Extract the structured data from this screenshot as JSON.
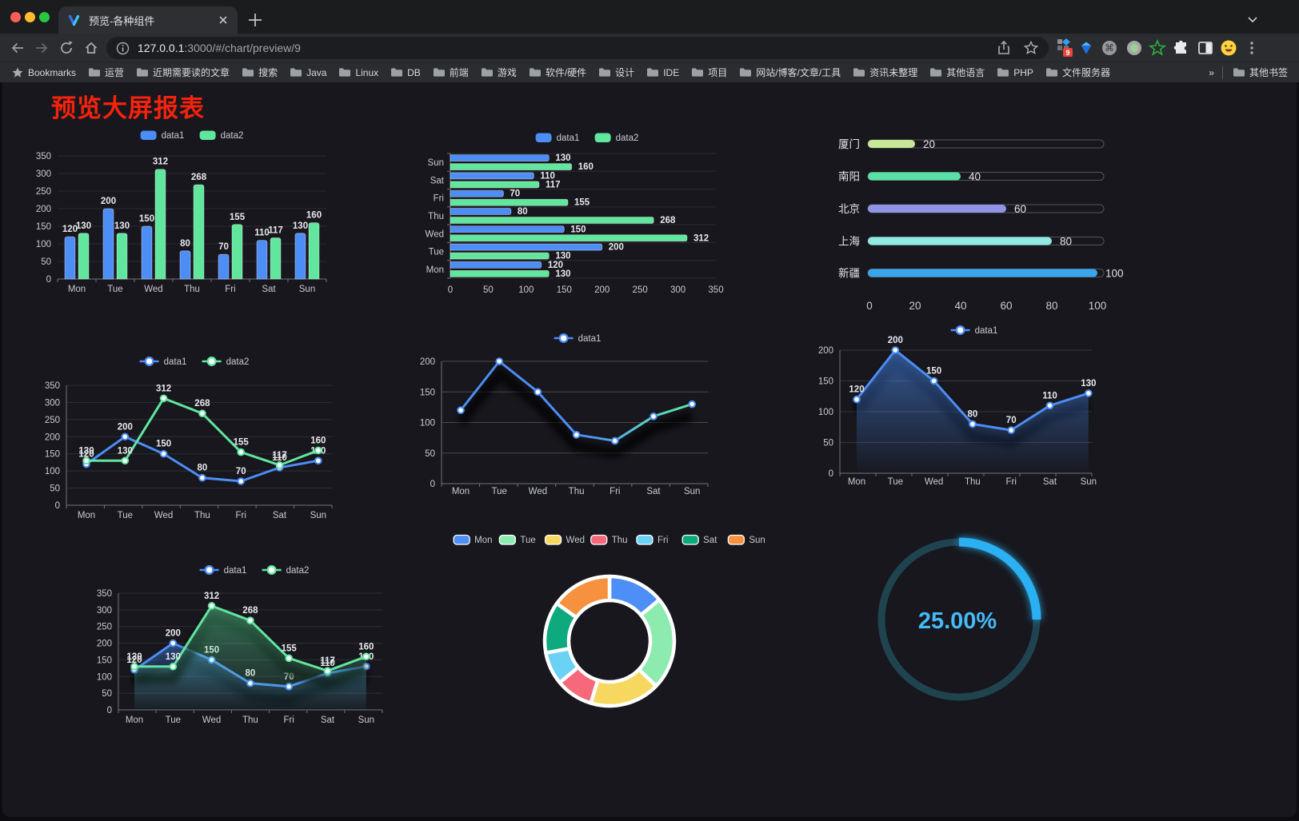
{
  "browser": {
    "tab_title": "预览-各种组件",
    "url_host": "127.0.0.1",
    "url_path": ":3000/#/chart/preview/9",
    "extension_badge": "9",
    "bookmarks_label": "Bookmarks",
    "bookmark_folders": [
      "运营",
      "近期需要读的文章",
      "搜索",
      "Java",
      "Linux",
      "DB",
      "前端",
      "游戏",
      "软件/硬件",
      "设计",
      "IDE",
      "项目",
      "网站/博客/文章/工具",
      "资讯未整理",
      "其他语言",
      "PHP",
      "文件服务器"
    ],
    "bookmarks_overflow": "»",
    "other_bookmarks": "其他书签"
  },
  "page": {
    "title": "预览大屏报表"
  },
  "chart_data": [
    {
      "id": "bar-grouped",
      "type": "bar",
      "categories": [
        "Mon",
        "Tue",
        "Wed",
        "Thu",
        "Fri",
        "Sat",
        "Sun"
      ],
      "series": [
        {
          "name": "data1",
          "color": "#4C8DF6",
          "values": [
            120,
            200,
            150,
            80,
            70,
            110,
            130
          ]
        },
        {
          "name": "data2",
          "color": "#61E69E",
          "values": [
            130,
            130,
            312,
            268,
            155,
            117,
            160
          ]
        }
      ],
      "ylim": [
        0,
        350
      ],
      "ytick_step": 50,
      "legend_position": "top",
      "grid": true
    },
    {
      "id": "bar-horizontal",
      "type": "hbar",
      "categories": [
        "Mon",
        "Tue",
        "Wed",
        "Thu",
        "Fri",
        "Sat",
        "Sun"
      ],
      "series": [
        {
          "name": "data1",
          "color": "#4C8DF6",
          "values": [
            120,
            200,
            150,
            80,
            70,
            110,
            130
          ]
        },
        {
          "name": "data2",
          "color": "#61E69E",
          "values": [
            130,
            130,
            312,
            268,
            155,
            117,
            160
          ]
        }
      ],
      "xlim": [
        0,
        350
      ],
      "xtick_step": 50,
      "legend_position": "top",
      "grid": true
    },
    {
      "id": "progress-bars",
      "type": "bar",
      "orientation": "horizontal-progress",
      "items": [
        {
          "label": "厦门",
          "value": 20,
          "color": "#C6E795"
        },
        {
          "label": "南阳",
          "value": 40,
          "color": "#58E0A6"
        },
        {
          "label": "北京",
          "value": 60,
          "color": "#9094E5"
        },
        {
          "label": "上海",
          "value": 80,
          "color": "#90E9E2"
        },
        {
          "label": "新疆",
          "value": 100,
          "color": "#3AA5E9"
        }
      ],
      "xlim": [
        0,
        100
      ],
      "xticks": [
        0,
        20,
        40,
        60,
        80,
        100
      ]
    },
    {
      "id": "line-two-series",
      "type": "line",
      "categories": [
        "Mon",
        "Tue",
        "Wed",
        "Thu",
        "Fri",
        "Sat",
        "Sun"
      ],
      "series": [
        {
          "name": "data1",
          "color": "#4C8DF6",
          "values": [
            120,
            200,
            150,
            80,
            70,
            110,
            130
          ]
        },
        {
          "name": "data2",
          "color": "#61E69E",
          "values": [
            130,
            130,
            312,
            268,
            155,
            117,
            160
          ]
        }
      ],
      "ylim": [
        0,
        350
      ],
      "ytick_step": 50,
      "legend_position": "top",
      "point_labels": true
    },
    {
      "id": "line-gradient",
      "type": "line",
      "categories": [
        "Mon",
        "Tue",
        "Wed",
        "Thu",
        "Fri",
        "Sat",
        "Sun"
      ],
      "series": [
        {
          "name": "data1",
          "color_start": "#4C8DF6",
          "color_end": "#5FE3A1",
          "color": "#4C8DF6",
          "values": [
            120,
            200,
            150,
            80,
            70,
            110,
            130
          ]
        }
      ],
      "ylim": [
        0,
        200
      ],
      "ytick_step": 50,
      "legend_position": "top",
      "point_labels": false,
      "shadow": true
    },
    {
      "id": "area-single",
      "type": "area",
      "categories": [
        "Mon",
        "Tue",
        "Wed",
        "Thu",
        "Fri",
        "Sat",
        "Sun"
      ],
      "series": [
        {
          "name": "data1",
          "color": "#4C8DF6",
          "values": [
            120,
            200,
            150,
            80,
            70,
            110,
            130
          ]
        }
      ],
      "ylim": [
        0,
        200
      ],
      "ytick_step": 50,
      "legend_position": "top",
      "point_labels": true
    },
    {
      "id": "area-two-series",
      "type": "area",
      "categories": [
        "Mon",
        "Tue",
        "Wed",
        "Thu",
        "Fri",
        "Sat",
        "Sun"
      ],
      "series": [
        {
          "name": "data1",
          "color": "#4C8DF6",
          "values": [
            120,
            200,
            150,
            80,
            70,
            110,
            130
          ]
        },
        {
          "name": "data2",
          "color": "#61E69E",
          "values": [
            130,
            130,
            312,
            268,
            155,
            117,
            160
          ]
        }
      ],
      "ylim": [
        0,
        350
      ],
      "ytick_step": 50,
      "legend_position": "top",
      "point_labels": true
    },
    {
      "id": "donut",
      "type": "pie",
      "inner_radius_ratio": 0.63,
      "categories": [
        "Mon",
        "Tue",
        "Wed",
        "Thu",
        "Fri",
        "Sat",
        "Sun"
      ],
      "values": [
        120,
        200,
        150,
        80,
        70,
        110,
        130
      ],
      "colors": [
        "#4E8EF7",
        "#8DEBAF",
        "#F6D860",
        "#F5697B",
        "#69D2F5",
        "#0FA97E",
        "#F6923F"
      ],
      "legend_position": "top"
    },
    {
      "id": "gauge",
      "type": "gauge",
      "value_label": "25.00%",
      "percent": 25,
      "color": "#2BB1F3",
      "track_color": "#1F4450",
      "text_color": "#45BAF7"
    }
  ]
}
